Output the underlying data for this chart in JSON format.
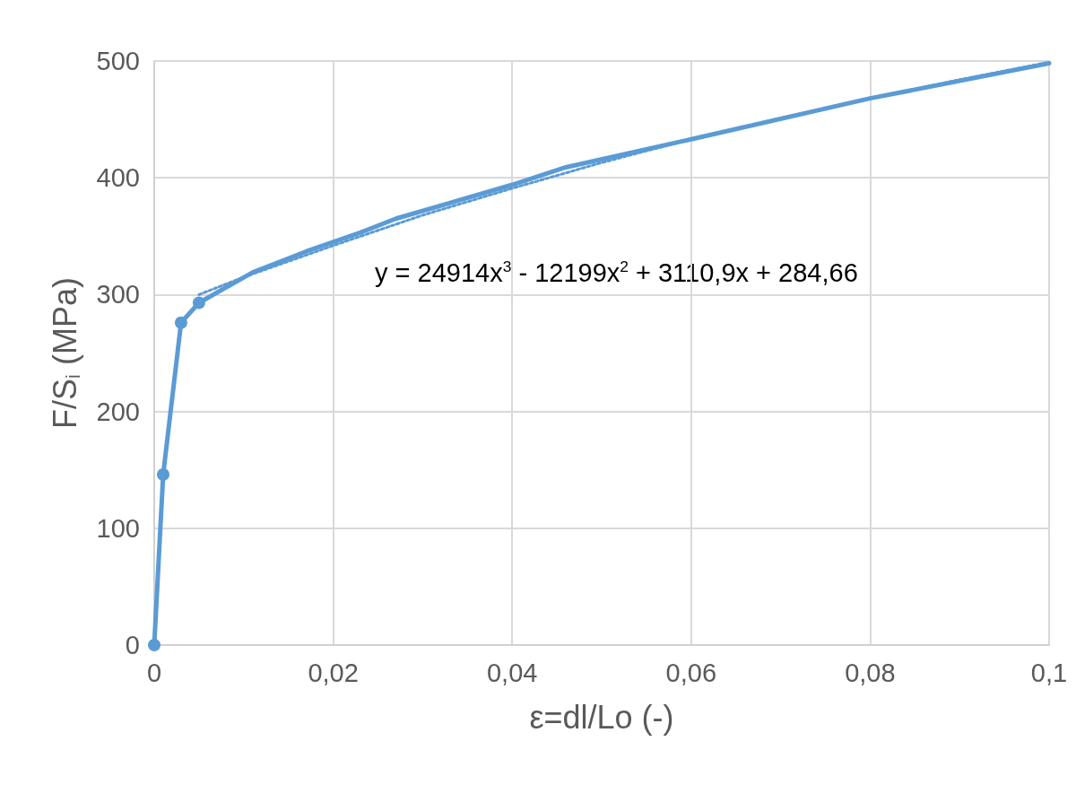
{
  "chart_data": {
    "type": "line",
    "xlabel": "ε=dl/Lo (-)",
    "ylabel": "F/S$_{i}$ (MPa)",
    "xlim": [
      0,
      0.1
    ],
    "xticks": [
      0,
      {
        "value": 0.02,
        "label": "0,02"
      },
      {
        "value": 0.04,
        "label": "0,04"
      },
      {
        "value": 0.06,
        "label": "0,06"
      },
      {
        "value": 0.08,
        "label": "0,08"
      },
      {
        "value": 0.1,
        "label": "0,1"
      }
    ],
    "ylim": [
      0,
      500
    ],
    "yticks": [
      0,
      100,
      200,
      300,
      400,
      500
    ],
    "grid": true,
    "line_style": "solid",
    "series": [
      {
        "color": "#5b9bd5",
        "marker": "circle",
        "x": [
          0,
          0.001,
          0.003,
          0.005
        ],
        "values": [
          0,
          146,
          276,
          293
        ]
      },
      {
        "color": "#5b9bd5",
        "marker": "none",
        "x": [
          0.005,
          0.011,
          0.017,
          0.023,
          0.027,
          0.04,
          0.046,
          0.06,
          0.08,
          0.1
        ],
        "values": [
          293,
          319,
          337,
          353,
          365,
          394,
          409,
          433,
          468,
          498
        ]
      },
      {
        "type": "line",
        "color": "#5b9bd5",
        "marker": "none",
        "line_style": "dotted",
        "x": [
          0.005,
          0.01,
          0.02,
          0.03,
          0.04,
          0.05,
          0.06,
          0.07,
          0.08,
          0.09,
          0.1
        ],
        "values": [
          300,
          315,
          342,
          368,
          391,
          413,
          433,
          451,
          468,
          484,
          499
        ]
      }
    ],
    "annotations": [
      "y = 24914x$^{3}$ - 12199x$^{2}$ + 3110,9x + 284,66"
    ]
  }
}
